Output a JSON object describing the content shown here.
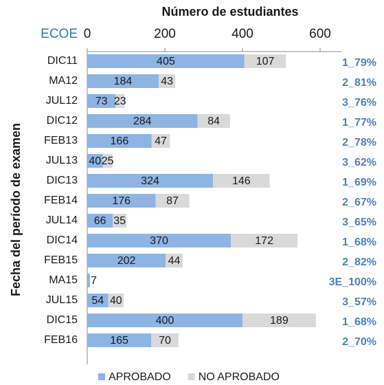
{
  "chart_data": {
    "type": "bar",
    "orientation": "horizontal",
    "stacked": true,
    "title": "Número de estudiantes",
    "category_header": "ECOE",
    "ylabel": "Fecha del período de examen",
    "categories": [
      "DIC11",
      "MA12",
      "JUL12",
      "DIC12",
      "FEB13",
      "JUL13",
      "DIC13",
      "FEB14",
      "JUL14",
      "DIC14",
      "FEB15",
      "MA15",
      "JUL15",
      "DIC15",
      "FEB16"
    ],
    "series": [
      {
        "name": "APROBADO",
        "color": "#8eb4e3",
        "values": [
          405,
          184,
          73,
          284,
          166,
          40,
          324,
          176,
          66,
          370,
          202,
          7,
          54,
          400,
          165
        ]
      },
      {
        "name": "NO APROBADO",
        "color": "#d9d9d9",
        "values": [
          107,
          43,
          23,
          84,
          47,
          25,
          146,
          87,
          35,
          172,
          44,
          null,
          40,
          189,
          70
        ]
      }
    ],
    "annotations": [
      "1_79%",
      "2_81%",
      "3_76%",
      "1_77%",
      "2_78%",
      "3_62%",
      "1_69%",
      "2_67%",
      "3_65%",
      "1_68%",
      "2_82%",
      "3E_100%",
      "3_57%",
      "1_68%",
      "2_70%"
    ],
    "xlim": [
      0,
      600
    ],
    "xticks": [
      0,
      200,
      400,
      600
    ],
    "legend": "bottom"
  }
}
